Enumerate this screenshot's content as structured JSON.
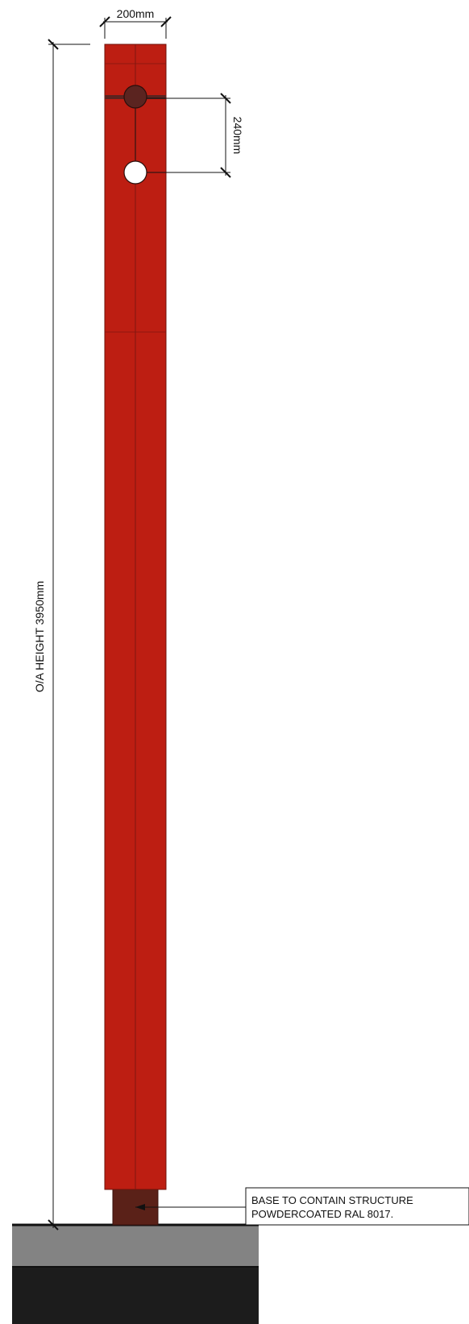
{
  "drawing": {
    "width_label": "200mm",
    "spacing_label": "240mm",
    "height_label": "O/A HEIGHT 3950mm",
    "base_note": {
      "line1": "BASE TO CONTAIN STRUCTURE",
      "line2": "POWDERCOATED RAL 8017."
    }
  },
  "colors": {
    "post": "#bd1e12",
    "base": "#5a2118",
    "hole_top": "#5b2420",
    "ground_mid": "#838383",
    "ground_bottom": "#1c1c1c",
    "line": "#111111"
  }
}
